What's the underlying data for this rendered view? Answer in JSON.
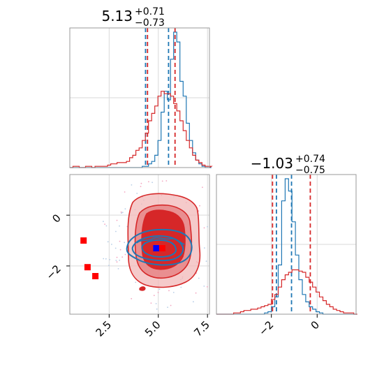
{
  "panels": {
    "top_left": {
      "title_main": "5.13",
      "title_sup": "+0.71",
      "title_sub": "−0.73"
    },
    "bottom_right": {
      "title_main": "−1.03",
      "title_sup": "+0.74",
      "title_sub": "−0.75"
    }
  },
  "chart_data": [
    {
      "type": "histogram",
      "panel": "top-left",
      "xlim": [
        0.5,
        7.6
      ],
      "grid": true,
      "series": [
        {
          "color": "#1f77b4",
          "bins_start": 0.5,
          "bin_width": 0.16,
          "counts": [
            0,
            0,
            0,
            0,
            0,
            0,
            0,
            0,
            0,
            0,
            0,
            0,
            0,
            0,
            0,
            0,
            0,
            0,
            0,
            0,
            0,
            0,
            0,
            1,
            1,
            3,
            5,
            10,
            22,
            45,
            62,
            55,
            88,
            110,
            102,
            70,
            58,
            36,
            22,
            12,
            6,
            3,
            1,
            0,
            0
          ],
          "quantiles": [
            4.35,
            5.52
          ]
        },
        {
          "color": "#d62728",
          "bins_start": 0.5,
          "bin_width": 0.16,
          "counts": [
            0,
            1,
            1,
            0,
            0,
            1,
            1,
            0,
            1,
            1,
            1,
            1,
            2,
            3,
            3,
            4,
            4,
            4,
            5,
            8,
            10,
            14,
            16,
            22,
            28,
            38,
            44,
            50,
            58,
            62,
            60,
            60,
            58,
            52,
            46,
            38,
            30,
            22,
            16,
            10,
            6,
            4,
            2,
            1,
            1
          ],
          "quantiles": [
            4.45,
            5.85
          ]
        }
      ]
    },
    {
      "type": "contour",
      "panel": "bottom-left",
      "xlim": [
        0.5,
        7.6
      ],
      "ylim": [
        -3.9,
        1.6
      ],
      "grid": true,
      "markers": [
        {
          "x": 1.2,
          "y": -1.0,
          "color": "#ff0000"
        },
        {
          "x": 1.4,
          "y": -2.05,
          "color": "#ff0000"
        },
        {
          "x": 1.8,
          "y": -2.4,
          "color": "#ff0000"
        },
        {
          "x": 4.9,
          "y": -1.3,
          "color": "#0000ff"
        },
        {
          "x": 5.2,
          "y": -1.3,
          "color": "#ff0000"
        }
      ]
    },
    {
      "type": "histogram",
      "panel": "bottom-right",
      "xlim": [
        -4.4,
        1.7
      ],
      "grid": true,
      "series": [
        {
          "color": "#1f77b4",
          "bins_start": -4.4,
          "bin_width": 0.15,
          "counts": [
            0,
            0,
            0,
            0,
            0,
            0,
            0,
            0,
            0,
            0,
            0,
            0,
            0,
            0,
            1,
            2,
            6,
            14,
            40,
            92,
            110,
            100,
            75,
            48,
            28,
            16,
            10,
            6,
            4,
            2,
            1,
            0,
            0,
            0,
            0,
            0,
            0,
            0,
            0,
            0,
            0
          ],
          "quantiles": [
            -1.78,
            -1.12
          ]
        },
        {
          "color": "#d62728",
          "bins_start": -4.4,
          "bin_width": 0.15,
          "counts": [
            0,
            0,
            0,
            0,
            0,
            1,
            1,
            2,
            3,
            3,
            4,
            4,
            5,
            6,
            7,
            8,
            12,
            16,
            22,
            28,
            32,
            34,
            36,
            36,
            35,
            34,
            30,
            26,
            22,
            18,
            14,
            11,
            8,
            6,
            4,
            3,
            2,
            1,
            1,
            1,
            0
          ],
          "quantiles": [
            -1.95,
            -0.3
          ]
        }
      ]
    }
  ],
  "axes": {
    "bottom_left_xticks": [
      "2.5",
      "5.0",
      "7.5"
    ],
    "bottom_left_xtick_values": [
      2.5,
      5.0,
      7.5
    ],
    "bottom_left_yticks": [
      "0",
      "−2"
    ],
    "bottom_left_ytick_values": [
      0,
      -2
    ],
    "bottom_right_xticks": [
      "−2",
      "0"
    ],
    "bottom_right_xtick_values": [
      -2,
      0
    ]
  }
}
